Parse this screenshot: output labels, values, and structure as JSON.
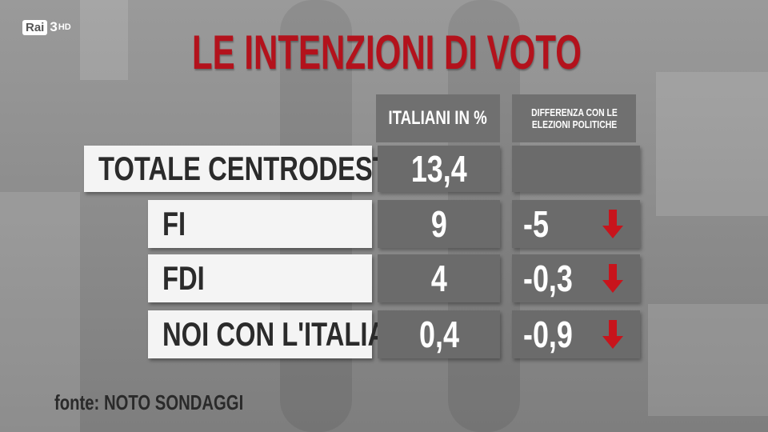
{
  "logo": {
    "brand": "Rai",
    "channel": "3",
    "quality": "HD"
  },
  "title": "LE INTENZIONI DI VOTO",
  "table": {
    "headers": {
      "value": "ITALIANI IN %",
      "diff": "DIFFERENZA CON LE ELEZIONI POLITICHE"
    },
    "rows": [
      {
        "label": "TOTALE CENTRODESTRA",
        "value": "13,4"
      },
      {
        "label": "FI",
        "value": "9",
        "diff": "-5"
      },
      {
        "label": "FDI",
        "value": "4",
        "diff": "-0,3"
      },
      {
        "label": "NOI CON L'ITALIA",
        "value": "0,4",
        "diff": "-0,9"
      }
    ]
  },
  "source": "fonte: NOTO SONDAGGI"
}
